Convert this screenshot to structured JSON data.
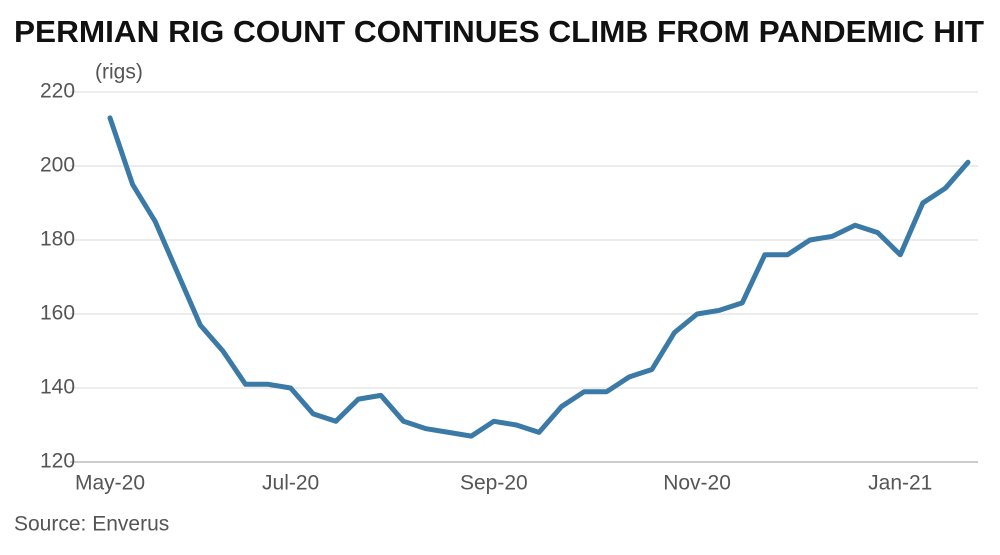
{
  "chart_data": {
    "type": "line",
    "title": "PERMIAN RIG COUNT CONTINUES CLIMB FROM PANDEMIC HIT",
    "y_label": "(rigs)",
    "source": "Source: Enverus",
    "categories": [
      "May-20",
      null,
      null,
      null,
      null,
      null,
      null,
      null,
      "Jul-20",
      null,
      null,
      null,
      null,
      null,
      null,
      null,
      null,
      "Sep-20",
      null,
      null,
      null,
      null,
      null,
      null,
      null,
      null,
      "Nov-20",
      null,
      null,
      null,
      null,
      null,
      null,
      null,
      null,
      "Jan-21",
      null,
      null,
      null
    ],
    "series": [
      {
        "name": "Permian rig count",
        "color": "#3b7aa7",
        "values": [
          213,
          195,
          185,
          171,
          157,
          150,
          141,
          141,
          140,
          133,
          131,
          137,
          138,
          131,
          129,
          128,
          127,
          131,
          130,
          128,
          135,
          139,
          139,
          143,
          145,
          155,
          160,
          161,
          163,
          176,
          176,
          180,
          181,
          184,
          182,
          176,
          190,
          194,
          201
        ]
      }
    ],
    "ylim": [
      120,
      220
    ],
    "yticks": [
      120,
      140,
      160,
      180,
      200,
      220
    ],
    "grid": true
  }
}
